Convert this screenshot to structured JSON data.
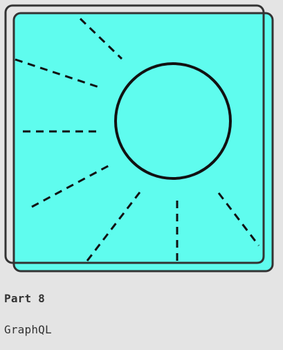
{
  "card": {
    "part_label": "Part 8",
    "topic_label": "GraphQL"
  },
  "illustration": {
    "icon": "sun-icon",
    "fill_color": "#5ffcee",
    "stroke_color": "#333333",
    "sun_outline_color": "#111111",
    "background_color": "#e4e4e4"
  }
}
